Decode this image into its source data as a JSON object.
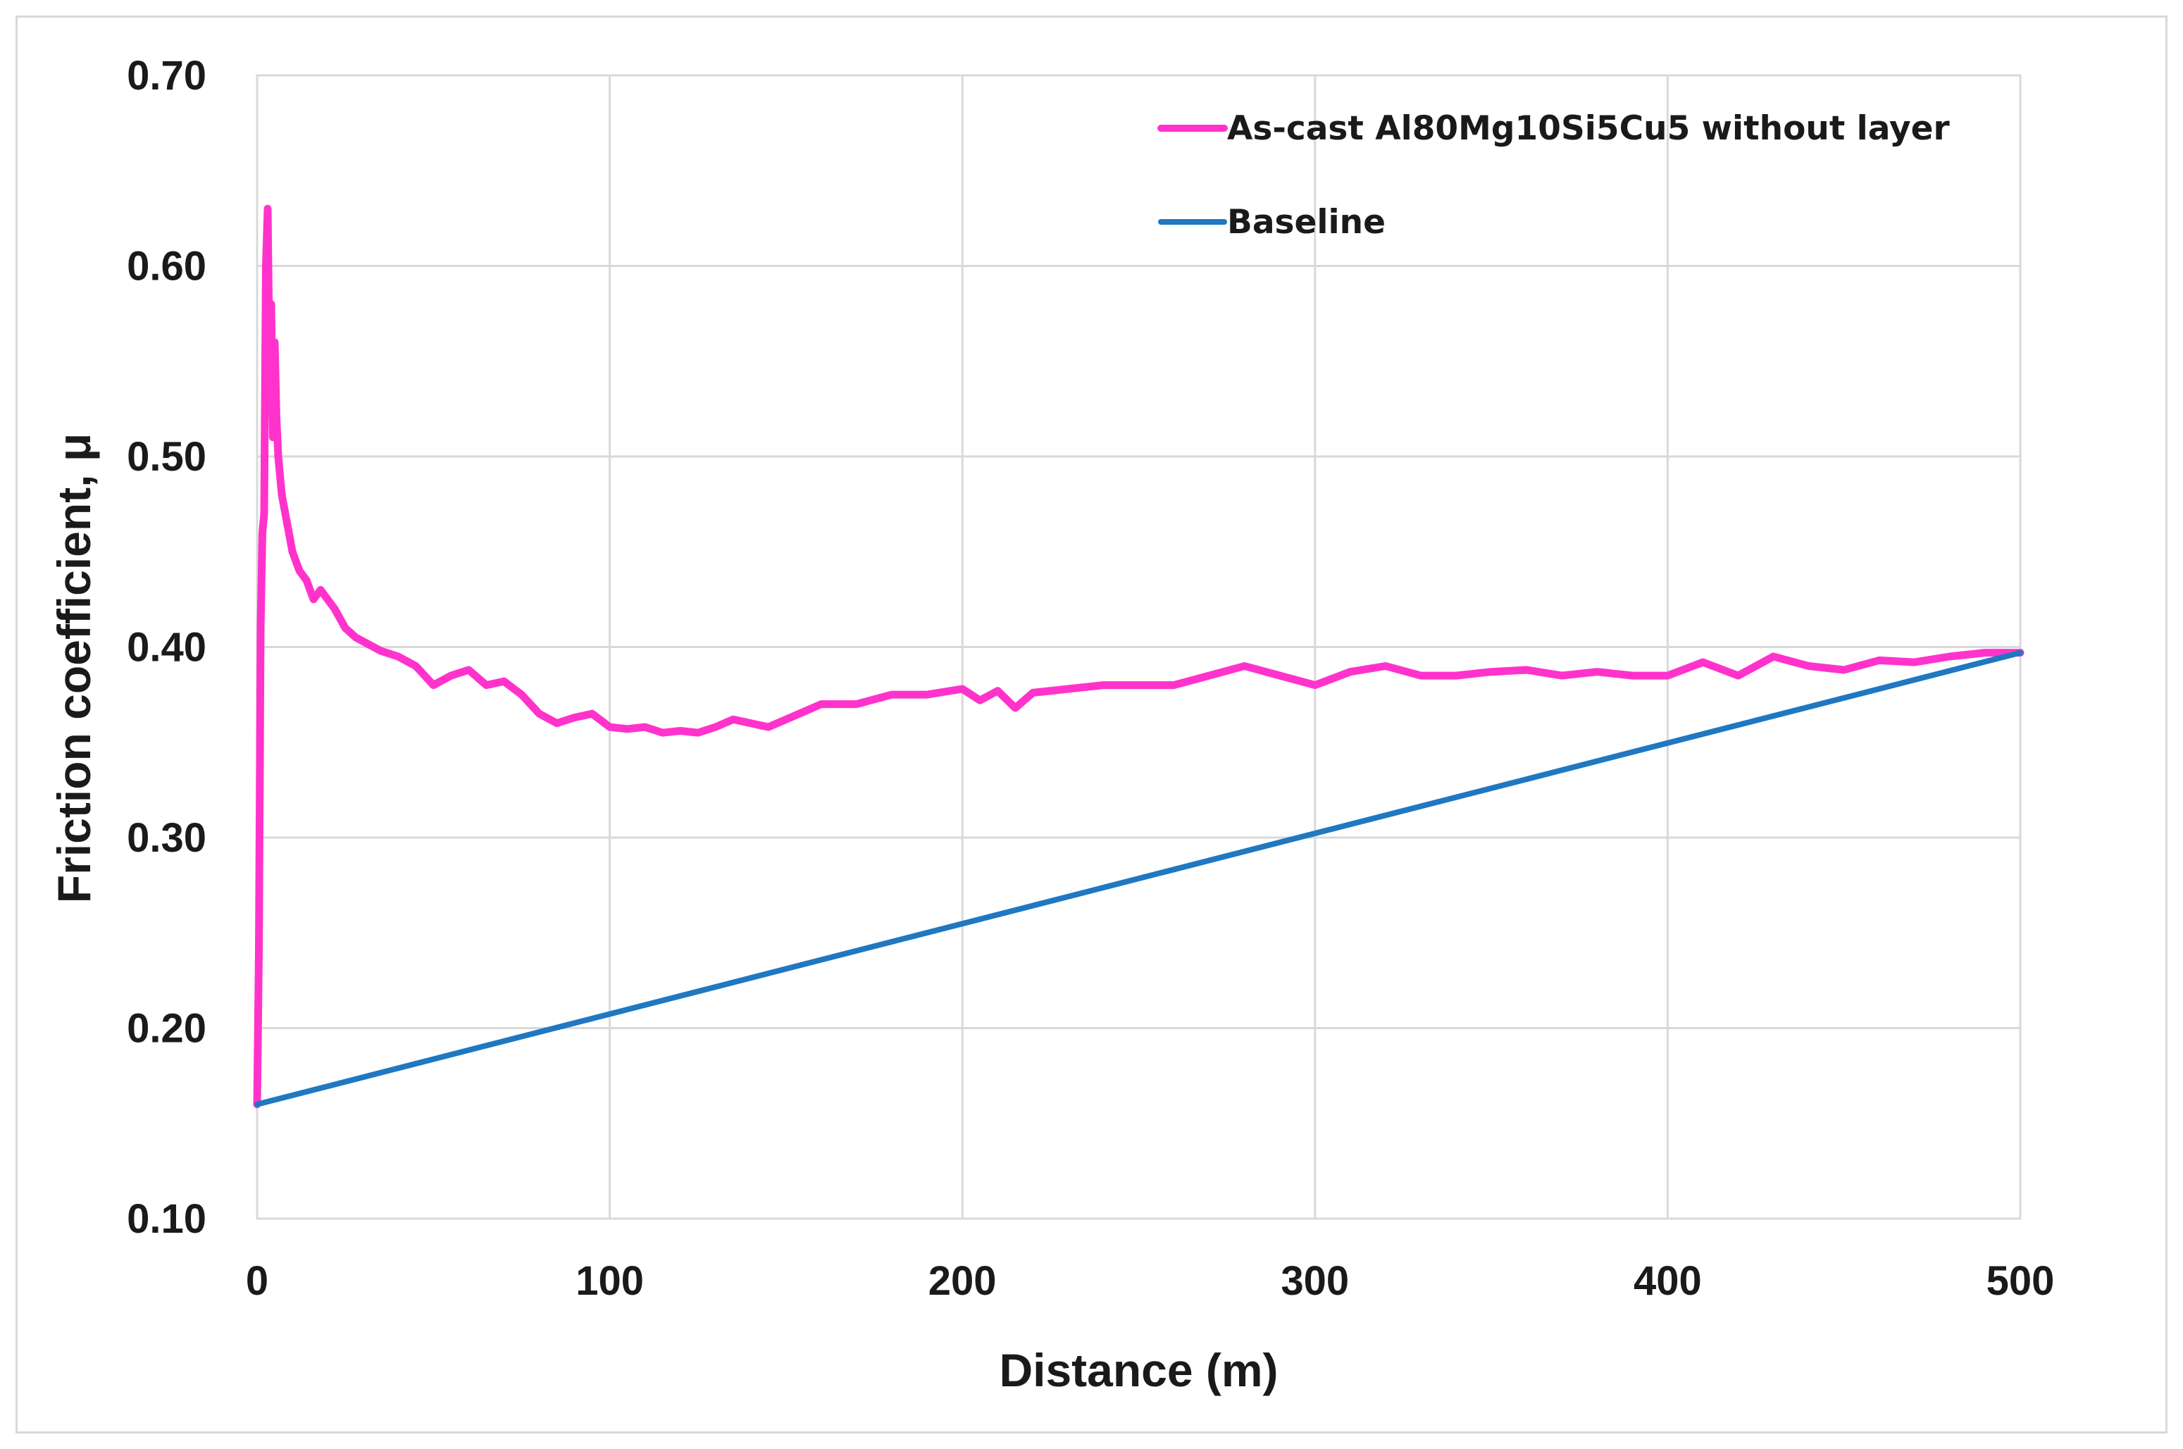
{
  "chart_data": {
    "type": "line",
    "xlabel": "Distance (m)",
    "ylabel": "Friction coefficient, μ",
    "xlim": [
      0,
      500
    ],
    "ylim": [
      0.1,
      0.7
    ],
    "xticks": [
      "0",
      "100",
      "200",
      "300",
      "400",
      "500"
    ],
    "yticks": [
      "0.10",
      "0.20",
      "0.30",
      "0.40",
      "0.50",
      "0.60",
      "0.70"
    ],
    "grid": true,
    "legend_position": "top-right",
    "series": [
      {
        "name": "As-cast Al80Mg10Si5Cu5 without layer",
        "color": "#ff33cc",
        "x": [
          0,
          0.5,
          1,
          1.5,
          2,
          2.5,
          3,
          3.5,
          4,
          4.5,
          5,
          5.5,
          6,
          7,
          8,
          9,
          10,
          12,
          14,
          16,
          18,
          20,
          22,
          25,
          28,
          30,
          35,
          40,
          45,
          50,
          55,
          60,
          65,
          70,
          75,
          80,
          85,
          90,
          95,
          100,
          105,
          110,
          115,
          120,
          125,
          130,
          135,
          140,
          145,
          150,
          160,
          170,
          180,
          190,
          200,
          205,
          210,
          215,
          220,
          230,
          240,
          250,
          260,
          270,
          280,
          290,
          300,
          310,
          320,
          330,
          340,
          350,
          360,
          370,
          380,
          390,
          400,
          410,
          420,
          430,
          440,
          450,
          460,
          470,
          480,
          490,
          500
        ],
        "y": [
          0.16,
          0.24,
          0.41,
          0.46,
          0.47,
          0.6,
          0.63,
          0.55,
          0.58,
          0.51,
          0.56,
          0.52,
          0.5,
          0.48,
          0.47,
          0.46,
          0.45,
          0.44,
          0.435,
          0.425,
          0.43,
          0.425,
          0.42,
          0.41,
          0.405,
          0.403,
          0.398,
          0.395,
          0.39,
          0.38,
          0.385,
          0.388,
          0.38,
          0.382,
          0.375,
          0.365,
          0.36,
          0.363,
          0.365,
          0.358,
          0.357,
          0.358,
          0.355,
          0.356,
          0.355,
          0.358,
          0.362,
          0.36,
          0.358,
          0.362,
          0.37,
          0.37,
          0.375,
          0.375,
          0.378,
          0.372,
          0.377,
          0.368,
          0.376,
          0.378,
          0.38,
          0.38,
          0.38,
          0.385,
          0.39,
          0.385,
          0.38,
          0.387,
          0.39,
          0.385,
          0.385,
          0.387,
          0.388,
          0.385,
          0.387,
          0.385,
          0.385,
          0.392,
          0.385,
          0.395,
          0.39,
          0.388,
          0.393,
          0.392,
          0.395,
          0.397,
          0.397
        ]
      },
      {
        "name": "Baseline",
        "color": "#1f78c1",
        "x": [
          0,
          500
        ],
        "y": [
          0.16,
          0.397
        ]
      }
    ]
  }
}
